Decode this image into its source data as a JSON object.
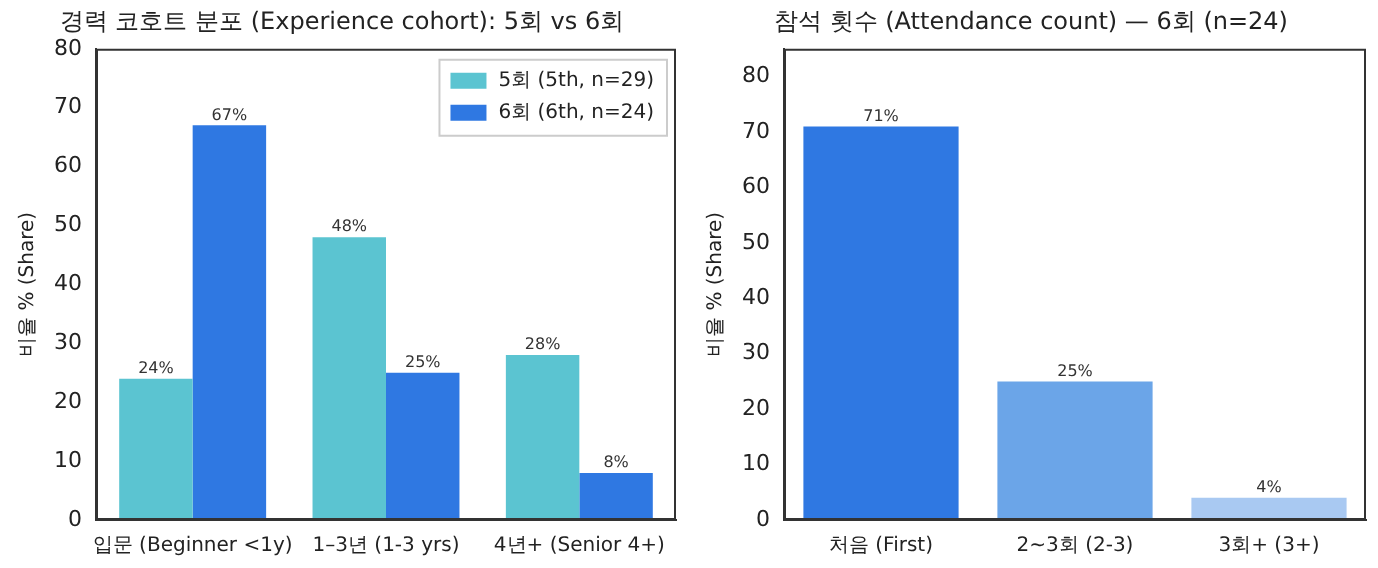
{
  "chart_data": [
    {
      "type": "bar",
      "title": "경력 코호트 분포 (Experience cohort): 5회 vs 6회",
      "ylabel": "비율 % (Share)",
      "categories": [
        "입문 (Beginner <1y)",
        "1–3년 (1-3 yrs)",
        "4년+ (Senior 4+)"
      ],
      "series": [
        {
          "name": "5회 (5th, n=29)",
          "color": "#5bc4d1",
          "values": [
            24,
            48,
            28
          ],
          "value_labels": [
            "24%",
            "48%",
            "28%"
          ]
        },
        {
          "name": "6회 (6th, n=24)",
          "color": "#2f78e2",
          "values": [
            67,
            25,
            8
          ],
          "value_labels": [
            "67%",
            "25%",
            "8%"
          ]
        }
      ],
      "ylim": [
        0,
        80
      ],
      "yticks": [
        0,
        10,
        20,
        30,
        40,
        50,
        60,
        70,
        80
      ],
      "grid": false,
      "legend": "top right"
    },
    {
      "type": "bar",
      "title": "참석 횟수 (Attendance count) — 6회 (n=24)",
      "ylabel": "비율 % (Share)",
      "categories": [
        "처음 (First)",
        "2~3회 (2-3)",
        "3회+ (3+)"
      ],
      "values": [
        71,
        25,
        4
      ],
      "colors": [
        "#2f78e2",
        "#6ba5e8",
        "#a9c9f2"
      ],
      "value_labels": [
        "71%",
        "25%",
        "4%"
      ],
      "ylim": [
        0,
        85
      ],
      "yticks": [
        0,
        10,
        20,
        30,
        40,
        50,
        60,
        70,
        80
      ],
      "grid": false,
      "legend": false
    }
  ]
}
